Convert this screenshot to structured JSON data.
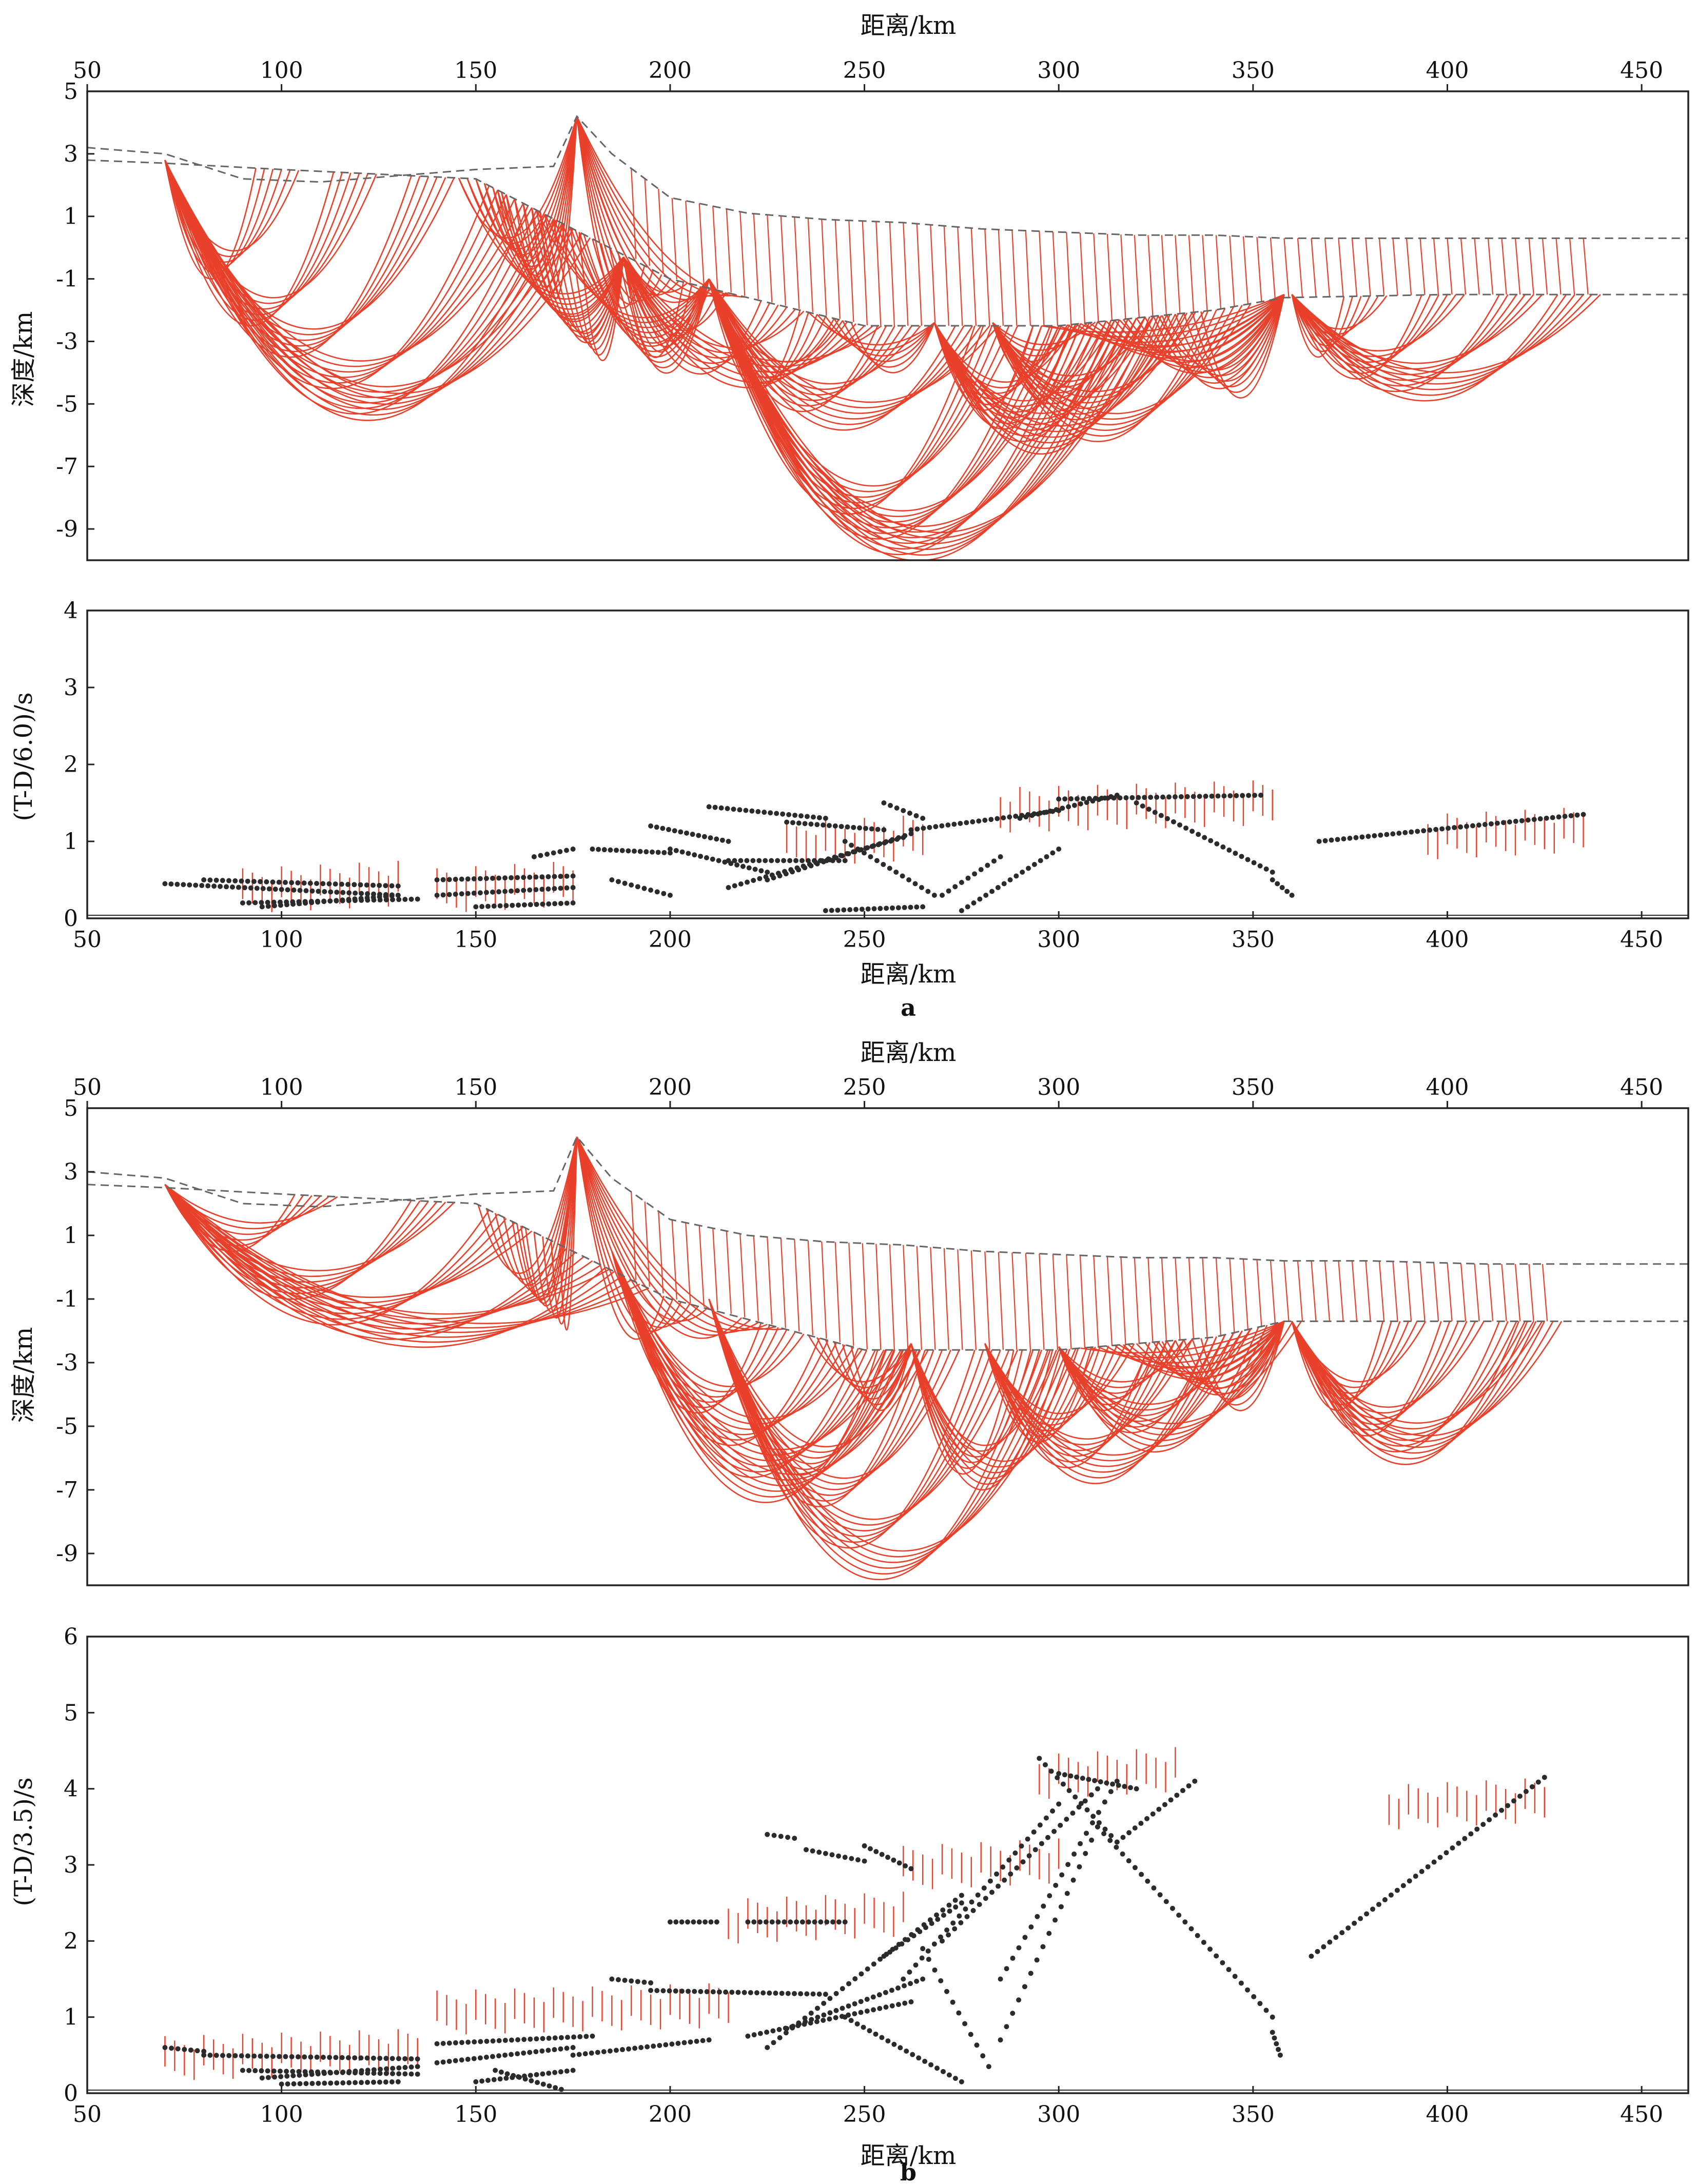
{
  "colors": {
    "ray": "#e8402a",
    "frame": "#222222",
    "point": "#2b2b2b",
    "dash": "#666666"
  },
  "panels": [
    {
      "label": "a",
      "ray": {
        "xlabel_top": "距离/km",
        "ylabel": "深度/km",
        "xticks": [
          "50",
          "100",
          "150",
          "200",
          "250",
          "300",
          "350",
          "400",
          "450"
        ],
        "yticks": [
          "5",
          "3",
          "1",
          "-1",
          "-3",
          "-5",
          "-7",
          "-9"
        ]
      },
      "time": {
        "xlabel": "距离/km",
        "ylabel": "(T-D/6.0)/s",
        "xticks": [
          "50",
          "100",
          "150",
          "200",
          "250",
          "300",
          "350",
          "400",
          "450"
        ],
        "yticks": [
          "4",
          "3",
          "2",
          "1",
          "0"
        ]
      }
    },
    {
      "label": "b",
      "ray": {
        "xlabel_top": "距离/km",
        "ylabel": "深度/km",
        "xticks": [
          "50",
          "100",
          "150",
          "200",
          "250",
          "300",
          "350",
          "400",
          "450"
        ],
        "yticks": [
          "5",
          "3",
          "1",
          "-1",
          "-3",
          "-5",
          "-7",
          "-9"
        ]
      },
      "time": {
        "xlabel": "距离/km",
        "ylabel": "(T-D/3.5)/s",
        "xticks": [
          "50",
          "100",
          "150",
          "200",
          "250",
          "300",
          "350",
          "400",
          "450"
        ],
        "yticks": [
          "6",
          "5",
          "4",
          "3",
          "2",
          "1",
          "0"
        ]
      }
    }
  ],
  "chart_data": [
    {
      "type": "line",
      "panel": "a-rays",
      "xlim": [
        50,
        462
      ],
      "ylim": [
        -10,
        5
      ],
      "surface": {
        "x": [
          50,
          70,
          90,
          110,
          130,
          150,
          170,
          176,
          185,
          200,
          220,
          240,
          260,
          280,
          300,
          320,
          340,
          358,
          380,
          410,
          462
        ],
        "y": [
          3.2,
          3.0,
          2.2,
          2.1,
          2.3,
          2.5,
          2.6,
          4.2,
          3.0,
          1.6,
          1.1,
          0.9,
          0.8,
          0.6,
          0.5,
          0.4,
          0.4,
          0.3,
          0.3,
          0.3,
          0.3
        ]
      },
      "interface": {
        "x": [
          50,
          70,
          100,
          150,
          200,
          250,
          300,
          340,
          358,
          400,
          462
        ],
        "y": [
          2.8,
          2.7,
          2.5,
          2.2,
          -1.0,
          -2.5,
          -2.5,
          -2.0,
          -1.6,
          -1.5,
          -1.5
        ]
      },
      "fans": [
        {
          "source": 70,
          "depth": 2.8,
          "targets": [
            100,
            120,
            140,
            160,
            170,
            175
          ],
          "bottoms": [
            -1,
            -2.5,
            -3.5,
            -4.5,
            -5.3,
            -5.5
          ]
        },
        {
          "source": 188,
          "depth": -0.3,
          "targets": [
            150,
            160,
            170,
            210,
            230,
            250
          ],
          "bottoms": [
            -2.2,
            -3.0,
            -3.6,
            -3.5,
            -4.0,
            -4.4
          ]
        },
        {
          "source": 210,
          "depth": -1.0,
          "targets": [
            170,
            180,
            240,
            260,
            280
          ],
          "bottoms": [
            -3,
            -4,
            -4.5,
            -5.2,
            -5.8
          ]
        },
        {
          "source": 210,
          "depth": -1.0,
          "targets": [
            285,
            300,
            310,
            320
          ],
          "bottoms": [
            -8.5,
            -9.3,
            -9.8,
            -10.0
          ]
        },
        {
          "source": 268,
          "depth": -2.4,
          "targets": [
            240,
            300,
            310,
            320,
            330
          ],
          "bottoms": [
            -4,
            -5.2,
            -5.8,
            -6.2,
            -6.6
          ]
        },
        {
          "source": 283,
          "depth": -2.4,
          "targets": [
            305,
            320,
            333,
            345
          ],
          "bottoms": [
            -4,
            -5,
            -5.5,
            -6.2
          ]
        },
        {
          "source": 358,
          "depth": -1.5,
          "targets": [
            300,
            310,
            320,
            330
          ],
          "bottoms": [
            -3.5,
            -4,
            -4.5,
            -4.8
          ]
        },
        {
          "source": 360,
          "depth": -1.5,
          "targets": [
            380,
            400,
            420,
            435
          ],
          "bottoms": [
            -3.5,
            -4.2,
            -4.6,
            -4.9
          ]
        }
      ],
      "peak": {
        "x": 176,
        "y": 4.2,
        "targets": [
          150,
          160,
          200,
          215
        ],
        "bottoms": [
          -0.5,
          -1.5,
          -1.5,
          -1.0
        ]
      },
      "verticals": {
        "from": 190,
        "to": 435,
        "step": 3.5
      }
    },
    {
      "type": "scatter",
      "panel": "a-times",
      "xlim": [
        50,
        462
      ],
      "ylim": [
        0,
        4
      ],
      "segments": [
        [
          70,
          0.45,
          130,
          0.3
        ],
        [
          80,
          0.5,
          130,
          0.42
        ],
        [
          90,
          0.2,
          135,
          0.25
        ],
        [
          95,
          0.15,
          130,
          0.3
        ],
        [
          140,
          0.5,
          175,
          0.55
        ],
        [
          140,
          0.3,
          175,
          0.4
        ],
        [
          150,
          0.15,
          175,
          0.2
        ],
        [
          165,
          0.8,
          175,
          0.9
        ],
        [
          180,
          0.9,
          200,
          0.85
        ],
        [
          185,
          0.5,
          200,
          0.3
        ],
        [
          195,
          1.2,
          215,
          1.0
        ],
        [
          210,
          1.45,
          240,
          1.3
        ],
        [
          215,
          0.4,
          260,
          1.05
        ],
        [
          225,
          0.5,
          262,
          1.1
        ],
        [
          240,
          0.1,
          265,
          0.15
        ],
        [
          255,
          1.5,
          265,
          1.3
        ],
        [
          262,
          1.15,
          300,
          1.4
        ],
        [
          270,
          0.3,
          285,
          0.8
        ],
        [
          275,
          0.1,
          300,
          0.9
        ],
        [
          290,
          1.3,
          315,
          1.6
        ],
        [
          300,
          1.55,
          352,
          1.6
        ],
        [
          320,
          1.5,
          355,
          0.6
        ],
        [
          355,
          0.5,
          360,
          0.3
        ],
        [
          367,
          1.0,
          435,
          1.35
        ],
        [
          200,
          0.9,
          225,
          0.6
        ],
        [
          215,
          0.75,
          245,
          0.75
        ],
        [
          230,
          1.25,
          255,
          1.15
        ],
        [
          245,
          1.0,
          268,
          0.3
        ]
      ],
      "red_bars": [
        [
          90,
          130,
          0.6
        ],
        [
          140,
          175,
          0.6
        ],
        [
          230,
          265,
          1.2
        ],
        [
          285,
          355,
          1.65
        ],
        [
          395,
          435,
          1.3
        ]
      ]
    },
    {
      "type": "line",
      "panel": "b-rays",
      "xlim": [
        50,
        462
      ],
      "ylim": [
        -10,
        5
      ],
      "surface": {
        "x": [
          50,
          70,
          90,
          110,
          130,
          150,
          170,
          176,
          185,
          200,
          220,
          240,
          260,
          280,
          300,
          320,
          340,
          358,
          380,
          410,
          462
        ],
        "y": [
          3.0,
          2.8,
          2.0,
          1.9,
          2.1,
          2.3,
          2.4,
          4.1,
          2.8,
          1.5,
          1.0,
          0.8,
          0.7,
          0.5,
          0.4,
          0.3,
          0.3,
          0.2,
          0.2,
          0.1,
          0.1
        ]
      },
      "interface": {
        "x": [
          50,
          70,
          100,
          150,
          200,
          250,
          300,
          340,
          358,
          400,
          462
        ],
        "y": [
          2.6,
          2.5,
          2.3,
          2.0,
          -1.0,
          -2.6,
          -2.6,
          -2.2,
          -1.7,
          -1.7,
          -1.7
        ]
      },
      "fans": [
        {
          "source": 70,
          "depth": 2.6,
          "targets": [
            110,
            140,
            160,
            180,
            190
          ],
          "bottoms": [
            0.5,
            -1.0,
            -1.8,
            -2.2,
            -2.4
          ]
        },
        {
          "source": 185,
          "depth": 0.5,
          "targets": [
            230,
            245,
            255,
            262
          ],
          "bottoms": [
            -4.5,
            -5.5,
            -6.5,
            -7.3
          ]
        },
        {
          "source": 210,
          "depth": -1.0,
          "targets": [
            260,
            270,
            285,
            300
          ],
          "bottoms": [
            -6.5,
            -7.5,
            -8.8,
            -9.8
          ]
        },
        {
          "source": 262,
          "depth": -2.4,
          "targets": [
            240,
            295,
            305
          ],
          "bottoms": [
            -4.5,
            -6.5,
            -7.0
          ]
        },
        {
          "source": 281,
          "depth": -2.4,
          "targets": [
            315,
            330,
            345
          ],
          "bottoms": [
            -5.5,
            -6.3,
            -6.8
          ]
        },
        {
          "source": 300,
          "depth": -2.5,
          "targets": [
            330,
            345,
            358
          ],
          "bottoms": [
            -4.5,
            -5.2,
            -5.8
          ]
        },
        {
          "source": 358,
          "depth": -1.7,
          "targets": [
            310,
            320,
            330
          ],
          "bottoms": [
            -3.5,
            -4.0,
            -4.5
          ]
        },
        {
          "source": 360,
          "depth": -1.7,
          "targets": [
            390,
            405,
            420,
            425
          ],
          "bottoms": [
            -4.5,
            -5.3,
            -5.8,
            -6.2
          ]
        }
      ],
      "peak": {
        "x": 176,
        "y": 4.1,
        "targets": [
          155,
          165,
          205,
          225
        ],
        "bottoms": [
          -1.0,
          -1.8,
          -1.8,
          -1.5
        ]
      },
      "verticals": {
        "from": 190,
        "to": 425,
        "step": 3.5
      }
    },
    {
      "type": "scatter",
      "panel": "b-times",
      "xlim": [
        50,
        462
      ],
      "ylim": [
        0,
        6
      ],
      "segments": [
        [
          70,
          0.6,
          80,
          0.55
        ],
        [
          80,
          0.5,
          135,
          0.45
        ],
        [
          90,
          0.3,
          135,
          0.25
        ],
        [
          95,
          0.2,
          135,
          0.35
        ],
        [
          100,
          0.12,
          130,
          0.15
        ],
        [
          140,
          0.65,
          180,
          0.75
        ],
        [
          140,
          0.4,
          175,
          0.6
        ],
        [
          150,
          0.15,
          175,
          0.3
        ],
        [
          155,
          0.3,
          172,
          0.05
        ],
        [
          175,
          0.5,
          210,
          0.7
        ],
        [
          185,
          1.5,
          195,
          1.45
        ],
        [
          195,
          1.35,
          240,
          1.3
        ],
        [
          200,
          2.25,
          212,
          2.25
        ],
        [
          220,
          2.25,
          245,
          2.25
        ],
        [
          225,
          3.4,
          232,
          3.35
        ],
        [
          235,
          3.2,
          250,
          3.05
        ],
        [
          250,
          3.25,
          262,
          2.95
        ],
        [
          220,
          0.75,
          262,
          1.2
        ],
        [
          225,
          0.6,
          275,
          2.6
        ],
        [
          230,
          0.85,
          265,
          1.5
        ],
        [
          255,
          1.8,
          275,
          2.5
        ],
        [
          260,
          1.5,
          300,
          3.8
        ],
        [
          270,
          2.0,
          310,
          4.0
        ],
        [
          285,
          1.5,
          315,
          4.1
        ],
        [
          285,
          0.7,
          310,
          3.5
        ],
        [
          295,
          4.4,
          315,
          3.3
        ],
        [
          310,
          3.5,
          355,
          1.0
        ],
        [
          315,
          3.3,
          335,
          4.1
        ],
        [
          300,
          4.2,
          320,
          4.0
        ],
        [
          245,
          1.0,
          275,
          0.15
        ],
        [
          265,
          1.9,
          282,
          0.35
        ],
        [
          355,
          0.8,
          357,
          0.5
        ],
        [
          365,
          1.8,
          425,
          4.15
        ]
      ],
      "red_bars": [
        [
          70,
          135,
          0.7
        ],
        [
          140,
          215,
          1.3
        ],
        [
          215,
          260,
          2.5
        ],
        [
          260,
          300,
          3.2
        ],
        [
          295,
          330,
          4.4
        ],
        [
          385,
          425,
          4.0
        ]
      ]
    }
  ]
}
